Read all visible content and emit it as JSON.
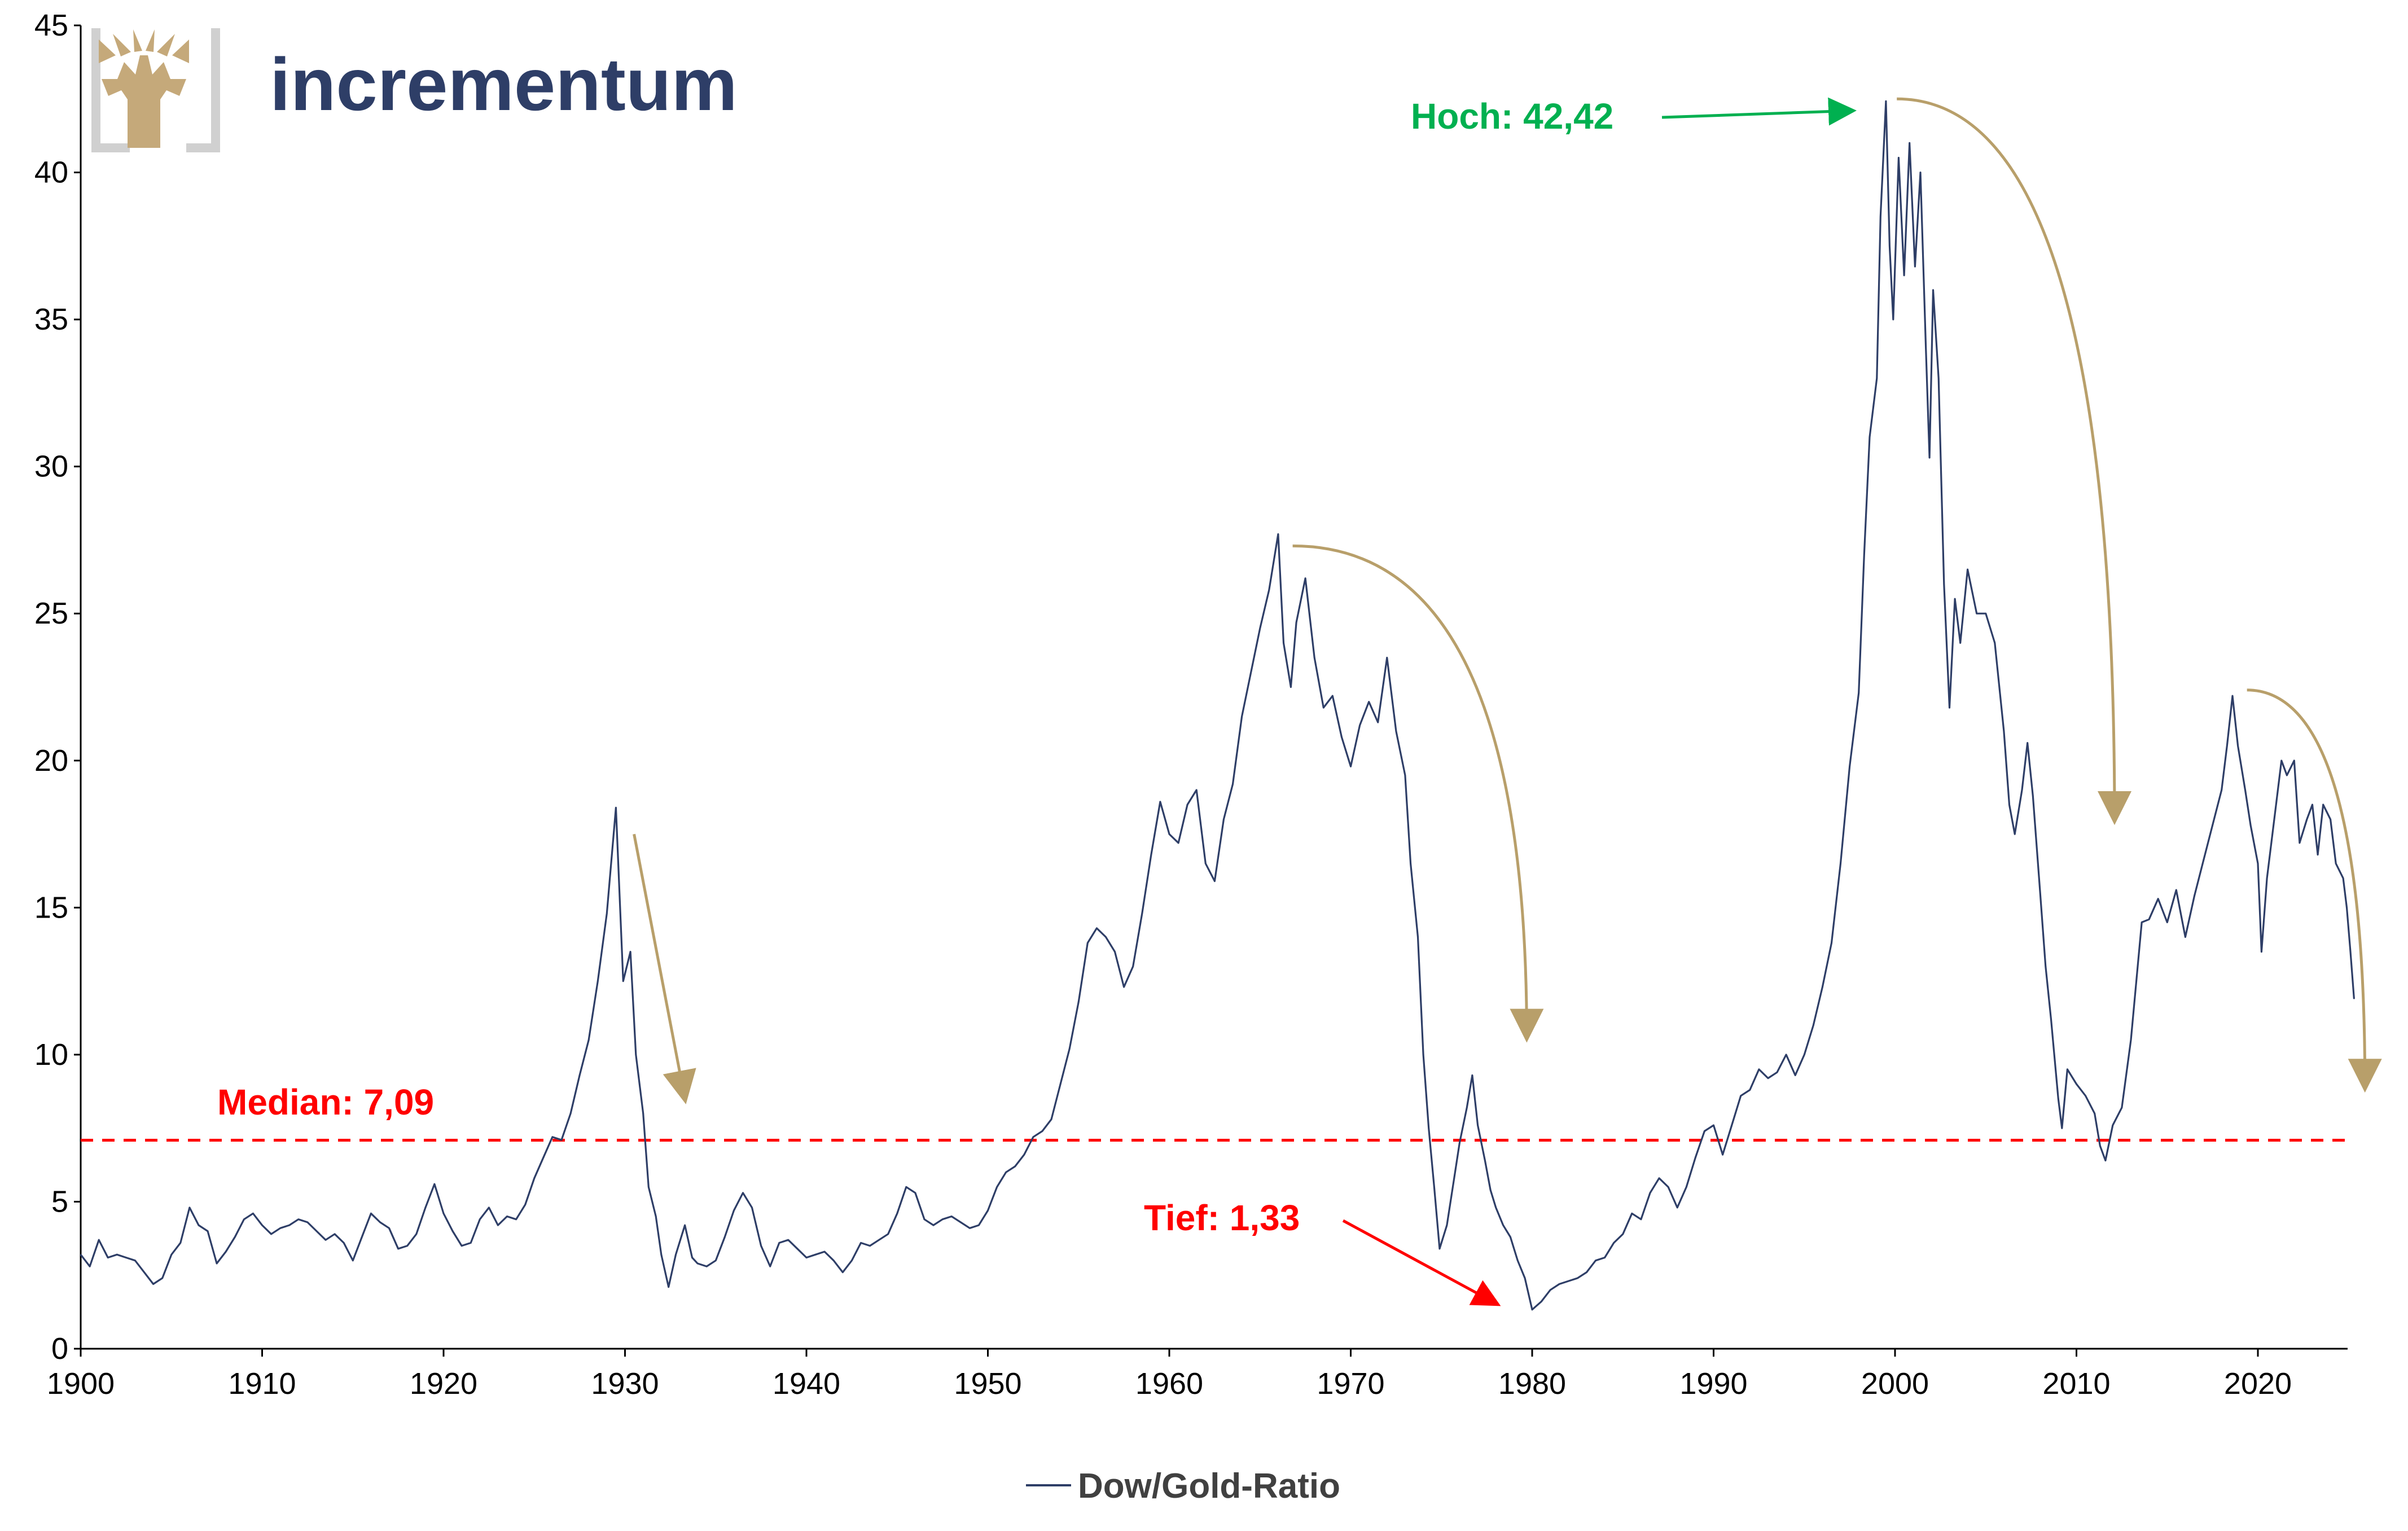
{
  "brand": {
    "name": "incrementum",
    "name_color": "#2e3e67",
    "tree_color": "#c5a97a",
    "frame_color": "#d0d0d0"
  },
  "chart_data": {
    "type": "line",
    "title": "",
    "xlabel": "",
    "ylabel": "",
    "xlim": [
      1900,
      2025.4
    ],
    "ylim": [
      0,
      45
    ],
    "x_ticks": [
      "1900",
      "1910",
      "1920",
      "1930",
      "1940",
      "1950",
      "1960",
      "1970",
      "1980",
      "1990",
      "2000",
      "2010",
      "2020"
    ],
    "y_ticks": [
      "0",
      "5",
      "10",
      "15",
      "20",
      "25",
      "30",
      "35",
      "40",
      "45"
    ],
    "grid": false,
    "legend_position": "bottom-center",
    "series": [
      {
        "name": "Dow/Gold-Ratio",
        "color": "#2e3e67",
        "points": [
          [
            1900,
            3.2
          ],
          [
            1900.5,
            2.8
          ],
          [
            1901,
            3.7
          ],
          [
            1901.5,
            3.1
          ],
          [
            1902,
            3.2
          ],
          [
            1902.5,
            3.1
          ],
          [
            1903,
            3.0
          ],
          [
            1903.5,
            2.6
          ],
          [
            1904,
            2.2
          ],
          [
            1904.5,
            2.4
          ],
          [
            1905,
            3.2
          ],
          [
            1905.5,
            3.6
          ],
          [
            1906,
            4.8
          ],
          [
            1906.5,
            4.2
          ],
          [
            1907,
            4.0
          ],
          [
            1907.5,
            2.9
          ],
          [
            1908,
            3.3
          ],
          [
            1908.5,
            3.8
          ],
          [
            1909,
            4.4
          ],
          [
            1909.5,
            4.6
          ],
          [
            1910,
            4.2
          ],
          [
            1910.5,
            3.9
          ],
          [
            1911,
            4.1
          ],
          [
            1911.5,
            4.2
          ],
          [
            1912,
            4.4
          ],
          [
            1912.5,
            4.3
          ],
          [
            1913,
            4.0
          ],
          [
            1913.5,
            3.7
          ],
          [
            1914,
            3.9
          ],
          [
            1914.5,
            3.6
          ],
          [
            1915,
            3.0
          ],
          [
            1915.5,
            3.8
          ],
          [
            1916,
            4.6
          ],
          [
            1916.5,
            4.3
          ],
          [
            1917,
            4.1
          ],
          [
            1917.5,
            3.4
          ],
          [
            1918,
            3.5
          ],
          [
            1918.5,
            3.9
          ],
          [
            1919,
            4.8
          ],
          [
            1919.5,
            5.6
          ],
          [
            1920,
            4.6
          ],
          [
            1920.5,
            4.0
          ],
          [
            1921,
            3.5
          ],
          [
            1921.5,
            3.6
          ],
          [
            1922,
            4.4
          ],
          [
            1922.5,
            4.8
          ],
          [
            1923,
            4.2
          ],
          [
            1923.5,
            4.5
          ],
          [
            1924,
            4.4
          ],
          [
            1924.5,
            4.9
          ],
          [
            1925,
            5.8
          ],
          [
            1925.5,
            6.5
          ],
          [
            1926,
            7.2
          ],
          [
            1926.5,
            7.1
          ],
          [
            1927,
            8.0
          ],
          [
            1927.5,
            9.3
          ],
          [
            1928,
            10.5
          ],
          [
            1928.5,
            12.5
          ],
          [
            1929,
            14.8
          ],
          [
            1929.5,
            18.4
          ],
          [
            1929.9,
            12.5
          ],
          [
            1930.3,
            13.5
          ],
          [
            1930.6,
            10.0
          ],
          [
            1931,
            8.0
          ],
          [
            1931.3,
            5.5
          ],
          [
            1931.7,
            4.5
          ],
          [
            1932,
            3.2
          ],
          [
            1932.4,
            2.1
          ],
          [
            1932.8,
            3.2
          ],
          [
            1933.3,
            4.2
          ],
          [
            1933.7,
            3.1
          ],
          [
            1934,
            2.9
          ],
          [
            1934.5,
            2.8
          ],
          [
            1935,
            3.0
          ],
          [
            1935.5,
            3.8
          ],
          [
            1936,
            4.7
          ],
          [
            1936.5,
            5.3
          ],
          [
            1937,
            4.8
          ],
          [
            1937.5,
            3.5
          ],
          [
            1938,
            2.8
          ],
          [
            1938.5,
            3.6
          ],
          [
            1939,
            3.7
          ],
          [
            1939.5,
            3.4
          ],
          [
            1940,
            3.1
          ],
          [
            1940.5,
            3.2
          ],
          [
            1941,
            3.3
          ],
          [
            1941.5,
            3.0
          ],
          [
            1942,
            2.6
          ],
          [
            1942.5,
            3.0
          ],
          [
            1943,
            3.6
          ],
          [
            1943.5,
            3.5
          ],
          [
            1944,
            3.7
          ],
          [
            1944.5,
            3.9
          ],
          [
            1945,
            4.6
          ],
          [
            1945.5,
            5.5
          ],
          [
            1946,
            5.3
          ],
          [
            1946.5,
            4.4
          ],
          [
            1947,
            4.2
          ],
          [
            1947.5,
            4.4
          ],
          [
            1948,
            4.5
          ],
          [
            1948.5,
            4.3
          ],
          [
            1949,
            4.1
          ],
          [
            1949.5,
            4.2
          ],
          [
            1950,
            4.7
          ],
          [
            1950.5,
            5.5
          ],
          [
            1951,
            6.0
          ],
          [
            1951.5,
            6.2
          ],
          [
            1952,
            6.6
          ],
          [
            1952.5,
            7.2
          ],
          [
            1953,
            7.4
          ],
          [
            1953.5,
            7.8
          ],
          [
            1954,
            9.0
          ],
          [
            1954.5,
            10.2
          ],
          [
            1955,
            11.8
          ],
          [
            1955.5,
            13.8
          ],
          [
            1956,
            14.3
          ],
          [
            1956.5,
            14.0
          ],
          [
            1957,
            13.5
          ],
          [
            1957.5,
            12.3
          ],
          [
            1958,
            13.0
          ],
          [
            1958.5,
            14.8
          ],
          [
            1959,
            16.8
          ],
          [
            1959.5,
            18.6
          ],
          [
            1960,
            17.5
          ],
          [
            1960.5,
            17.2
          ],
          [
            1961,
            18.5
          ],
          [
            1961.5,
            19.0
          ],
          [
            1962,
            16.5
          ],
          [
            1962.5,
            15.9
          ],
          [
            1963,
            18.0
          ],
          [
            1963.5,
            19.2
          ],
          [
            1964,
            21.5
          ],
          [
            1964.5,
            23.0
          ],
          [
            1965,
            24.5
          ],
          [
            1965.5,
            25.8
          ],
          [
            1966,
            27.7
          ],
          [
            1966.3,
            24.0
          ],
          [
            1966.7,
            22.5
          ],
          [
            1967,
            24.7
          ],
          [
            1967.5,
            26.2
          ],
          [
            1968,
            23.5
          ],
          [
            1968.5,
            21.8
          ],
          [
            1969,
            22.2
          ],
          [
            1969.5,
            20.8
          ],
          [
            1970,
            19.8
          ],
          [
            1970.5,
            21.2
          ],
          [
            1971,
            22.0
          ],
          [
            1971.5,
            21.3
          ],
          [
            1972,
            23.5
          ],
          [
            1972.5,
            21.0
          ],
          [
            1973,
            19.5
          ],
          [
            1973.3,
            16.5
          ],
          [
            1973.7,
            14.0
          ],
          [
            1974,
            10.0
          ],
          [
            1974.3,
            7.5
          ],
          [
            1974.6,
            5.5
          ],
          [
            1974.9,
            3.4
          ],
          [
            1975.3,
            4.2
          ],
          [
            1975.7,
            5.8
          ],
          [
            1976,
            7.0
          ],
          [
            1976.4,
            8.2
          ],
          [
            1976.7,
            9.3
          ],
          [
            1977,
            7.6
          ],
          [
            1977.4,
            6.4
          ],
          [
            1977.7,
            5.4
          ],
          [
            1978,
            4.8
          ],
          [
            1978.4,
            4.2
          ],
          [
            1978.8,
            3.8
          ],
          [
            1979.2,
            3.0
          ],
          [
            1979.6,
            2.4
          ],
          [
            1980,
            1.33
          ],
          [
            1980.5,
            1.6
          ],
          [
            1981,
            2.0
          ],
          [
            1981.5,
            2.2
          ],
          [
            1982,
            2.3
          ],
          [
            1982.5,
            2.4
          ],
          [
            1983,
            2.6
          ],
          [
            1983.5,
            3.0
          ],
          [
            1984,
            3.1
          ],
          [
            1984.5,
            3.6
          ],
          [
            1985,
            3.9
          ],
          [
            1985.5,
            4.6
          ],
          [
            1986,
            4.4
          ],
          [
            1986.5,
            5.3
          ],
          [
            1987,
            5.8
          ],
          [
            1987.5,
            5.5
          ],
          [
            1988,
            4.8
          ],
          [
            1988.5,
            5.5
          ],
          [
            1989,
            6.5
          ],
          [
            1989.5,
            7.4
          ],
          [
            1990,
            7.6
          ],
          [
            1990.5,
            6.6
          ],
          [
            1991,
            7.6
          ],
          [
            1991.5,
            8.6
          ],
          [
            1992,
            8.8
          ],
          [
            1992.5,
            9.5
          ],
          [
            1993,
            9.2
          ],
          [
            1993.5,
            9.4
          ],
          [
            1994,
            10.0
          ],
          [
            1994.5,
            9.3
          ],
          [
            1995,
            10.0
          ],
          [
            1995.5,
            11.0
          ],
          [
            1996,
            12.3
          ],
          [
            1996.5,
            13.8
          ],
          [
            1997,
            16.5
          ],
          [
            1997.5,
            19.8
          ],
          [
            1998,
            22.3
          ],
          [
            1998.3,
            27.0
          ],
          [
            1998.6,
            31.0
          ],
          [
            1999,
            33.0
          ],
          [
            1999.2,
            38.5
          ],
          [
            1999.5,
            42.42
          ],
          [
            1999.7,
            37.5
          ],
          [
            1999.9,
            35.0
          ],
          [
            2000.2,
            40.5
          ],
          [
            2000.5,
            36.5
          ],
          [
            2000.8,
            41.0
          ],
          [
            2001.1,
            36.8
          ],
          [
            2001.4,
            40.0
          ],
          [
            2001.7,
            34.0
          ],
          [
            2001.9,
            30.3
          ],
          [
            2002.1,
            36.0
          ],
          [
            2002.4,
            33.0
          ],
          [
            2002.7,
            26.0
          ],
          [
            2003.0,
            21.8
          ],
          [
            2003.3,
            25.5
          ],
          [
            2003.6,
            24.0
          ],
          [
            2004,
            26.5
          ],
          [
            2004.5,
            25.0
          ],
          [
            2005,
            25.0
          ],
          [
            2005.5,
            24.0
          ],
          [
            2006,
            21.0
          ],
          [
            2006.3,
            18.5
          ],
          [
            2006.6,
            17.5
          ],
          [
            2007,
            19.0
          ],
          [
            2007.3,
            20.6
          ],
          [
            2007.6,
            18.8
          ],
          [
            2008,
            15.5
          ],
          [
            2008.3,
            13.0
          ],
          [
            2008.6,
            11.2
          ],
          [
            2009,
            8.5
          ],
          [
            2009.2,
            7.5
          ],
          [
            2009.5,
            9.5
          ],
          [
            2010,
            9.0
          ],
          [
            2010.5,
            8.6
          ],
          [
            2011,
            8.0
          ],
          [
            2011.3,
            6.9
          ],
          [
            2011.6,
            6.4
          ],
          [
            2012,
            7.6
          ],
          [
            2012.5,
            8.2
          ],
          [
            2013,
            10.5
          ],
          [
            2013.3,
            12.5
          ],
          [
            2013.6,
            14.5
          ],
          [
            2014,
            14.6
          ],
          [
            2014.5,
            15.3
          ],
          [
            2015,
            14.5
          ],
          [
            2015.5,
            15.6
          ],
          [
            2016,
            14.0
          ],
          [
            2016.5,
            15.4
          ],
          [
            2017,
            16.6
          ],
          [
            2017.5,
            17.8
          ],
          [
            2018,
            19.0
          ],
          [
            2018.3,
            20.5
          ],
          [
            2018.6,
            22.2
          ],
          [
            2018.9,
            20.5
          ],
          [
            2019.3,
            19.0
          ],
          [
            2019.6,
            17.8
          ],
          [
            2020,
            16.5
          ],
          [
            2020.2,
            13.5
          ],
          [
            2020.5,
            16.0
          ],
          [
            2021,
            18.5
          ],
          [
            2021.3,
            20.0
          ],
          [
            2021.6,
            19.5
          ],
          [
            2022,
            20.0
          ],
          [
            2022.3,
            17.2
          ],
          [
            2022.7,
            18.0
          ],
          [
            2023,
            18.5
          ],
          [
            2023.3,
            16.8
          ],
          [
            2023.6,
            18.5
          ],
          [
            2024,
            18.0
          ],
          [
            2024.3,
            16.5
          ],
          [
            2024.7,
            16.0
          ],
          [
            2024.9,
            15.0
          ],
          [
            2025.1,
            13.5
          ],
          [
            2025.3,
            11.9
          ]
        ]
      }
    ],
    "reference_lines": [
      {
        "label": "Median: 7,09",
        "y": 7.09,
        "color": "#ff0000",
        "style": "dashed"
      }
    ],
    "annotations": [
      {
        "text": "Hoch: 42,42",
        "color": "#00b050",
        "target": [
          1999.5,
          42.42
        ]
      },
      {
        "text": "Tief: 1,33",
        "color": "#ff0000",
        "target": [
          1980,
          1.33
        ]
      }
    ],
    "decline_arrows": [
      {
        "from": [
          1930.5,
          17.5
        ],
        "to": [
          1933.3,
          8.5
        ]
      },
      {
        "from": [
          1966.8,
          27.3
        ],
        "to": [
          1979.7,
          10.6
        ]
      },
      {
        "from": [
          2000.1,
          42.5
        ],
        "to": [
          2012.1,
          18.0
        ]
      },
      {
        "from": [
          2019.4,
          22.4
        ],
        "to": [
          2025.9,
          8.9
        ]
      }
    ],
    "arrow_color": "#b89f6a"
  }
}
